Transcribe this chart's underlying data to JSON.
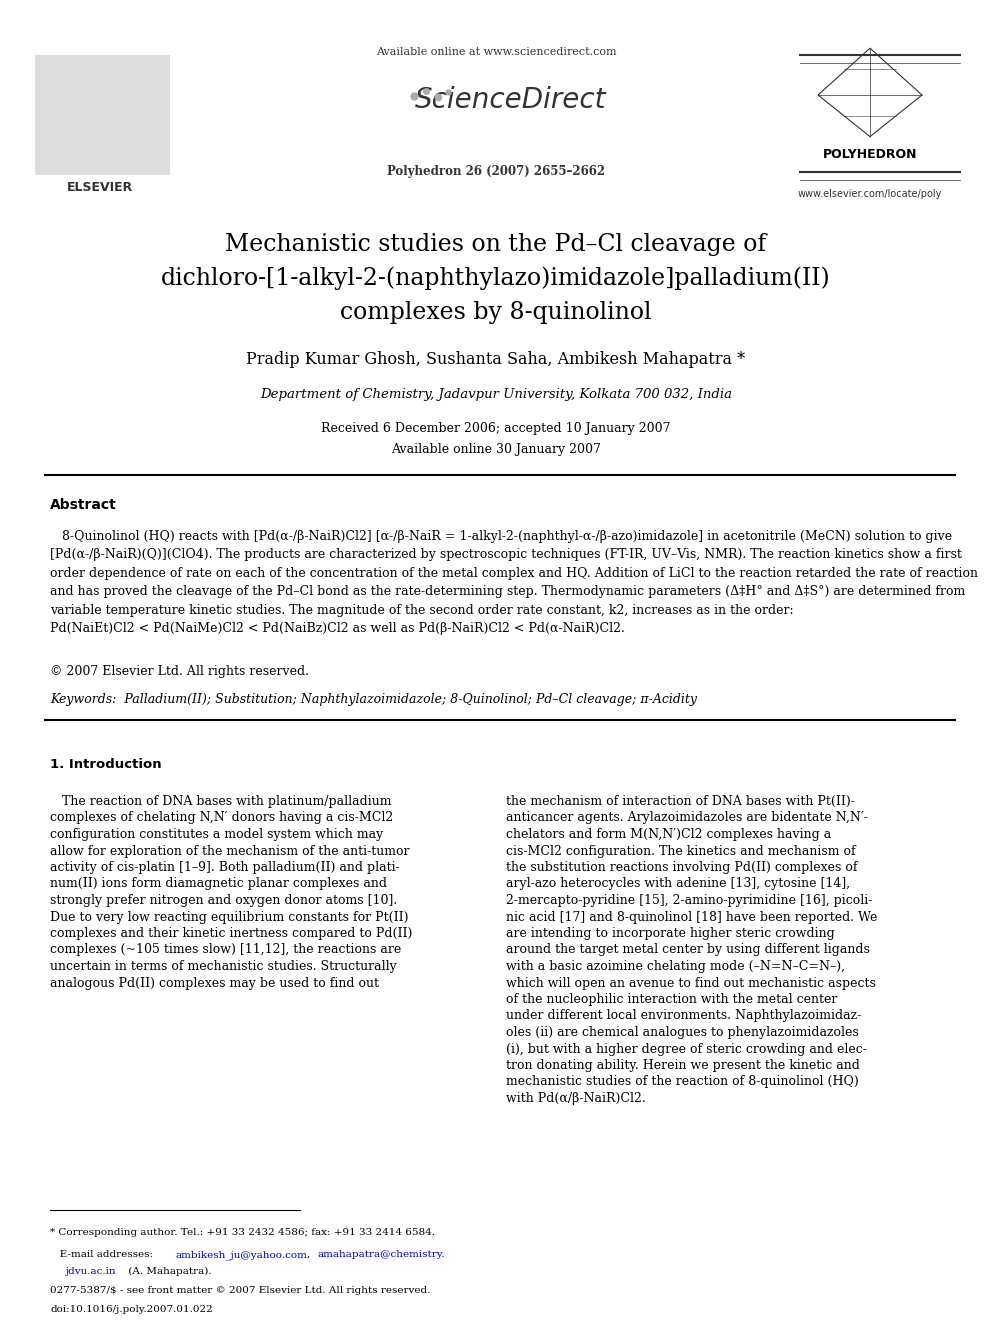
{
  "bg_color": "#ffffff",
  "page_width": 9.92,
  "page_height": 13.23,
  "dpi": 100,
  "header": {
    "available_online": "Available online at www.sciencedirect.com",
    "journal_ref": "Polyhedron 26 (2007) 2655–2662",
    "journal_name": "POLYHEDRON",
    "journal_url": "www.elsevier.com/locate/poly"
  },
  "title_lines": [
    "Mechanistic studies on the Pd–Cl cleavage of",
    "dichloro-[1-alkyl-2-(naphthylazo)imidazole]palladium(II)",
    "complexes by 8-quinolinol"
  ],
  "authors": "Pradip Kumar Ghosh, Sushanta Saha, Ambikesh Mahapatra *",
  "affiliation": "Department of Chemistry, Jadavpur University, Kolkata 700 032, India",
  "received": "Received 6 December 2006; accepted 10 January 2007",
  "available_date": "Available online 30 January 2007",
  "abstract_title": "Abstract",
  "keywords_text": "Keywords:  Palladium(II); Substitution; Naphthylazoimidazole; 8-Quinolinol; Pd–Cl cleavage; π-Acidity",
  "section1_title": "1. Introduction",
  "copyright": "© 2007 Elsevier Ltd. All rights reserved.",
  "footnote_star": "* Corresponding author. Tel.: +91 33 2432 4586; fax: +91 33 2414 6584.",
  "footnote_email1": "E-mail addresses:  ambikesh_ju@yahoo.com,  amahapatra@chemistry.",
  "footnote_email2": "jdvu.ac.in (A. Mahapatra).",
  "footnote_issn": "0277-5387/$ - see front matter © 2007 Elsevier Ltd. All rights reserved.",
  "footnote_doi": "doi:10.1016/j.poly.2007.01.022",
  "abstract_para": "   8-Quinolinol (HQ) reacts with [Pd(α-/β-NaiR)Cl2] [α-/β-NaiR = 1-alkyl-2-(naphthyl-α-/β-azo)imidazole] in acetonitrile (MeCN) solution to give [Pd(α-/β-NaiR)(Q)](ClO4). The products are characterized by spectroscopic techniques (FT-IR, UV–Vis, NMR). The reaction kinetics show a first order dependence of rate on each of the concentration of the metal complex and HQ. Addition of LiCl to the reaction retarded the rate of reaction and has proved the cleavage of the Pd–Cl bond as the rate-determining step. Thermodynamic parameters (Δ‡H° and Δ‡S°) are determined from variable temperature kinetic studies. The magnitude of the second order rate constant, k2, increases as in the order: Pd(NaiEt)Cl2 < Pd(NaiMe)Cl2 < Pd(NaiBz)Cl2 as well as Pd(β-NaiR)Cl2 < Pd(α-NaiR)Cl2.",
  "col1_lines": [
    "   The reaction of DNA bases with platinum/palladium",
    "complexes of chelating N,N′ donors having a cis-MCl2",
    "configuration constitutes a model system which may",
    "allow for exploration of the mechanism of the anti-tumor",
    "activity of cis-platin [1–9]. Both palladium(II) and plati-",
    "num(II) ions form diamagnetic planar complexes and",
    "strongly prefer nitrogen and oxygen donor atoms [10].",
    "Due to very low reacting equilibrium constants for Pt(II)",
    "complexes and their kinetic inertness compared to Pd(II)",
    "complexes (~105 times slow) [11,12], the reactions are",
    "uncertain in terms of mechanistic studies. Structurally",
    "analogous Pd(II) complexes may be used to find out"
  ],
  "col2_lines": [
    "the mechanism of interaction of DNA bases with Pt(II)-",
    "anticancer agents. Arylazoimidazoles are bidentate N,N′-",
    "chelators and form M(N,N′)Cl2 complexes having a",
    "cis-MCl2 configuration. The kinetics and mechanism of",
    "the substitution reactions involving Pd(II) complexes of",
    "aryl-azo heterocycles with adenine [13], cytosine [14],",
    "2-mercapto-pyridine [15], 2-amino-pyrimidine [16], picoli-",
    "nic acid [17] and 8-quinolinol [18] have been reported. We",
    "are intending to incorporate higher steric crowding",
    "around the target metal center by using different ligands",
    "with a basic azoimine chelating mode (–N=N–C=N–),",
    "which will open an avenue to find out mechanistic aspects",
    "of the nucleophilic interaction with the metal center",
    "under different local environments. Naphthylazoimidaz-",
    "oles (ii) are chemical analogues to phenylazoimidazoles",
    "(i), but with a higher degree of steric crowding and elec-",
    "tron donating ability. Herein we present the kinetic and",
    "mechanistic studies of the reaction of 8-quinolinol (HQ)",
    "with Pd(α/β-NaiR)Cl2."
  ]
}
